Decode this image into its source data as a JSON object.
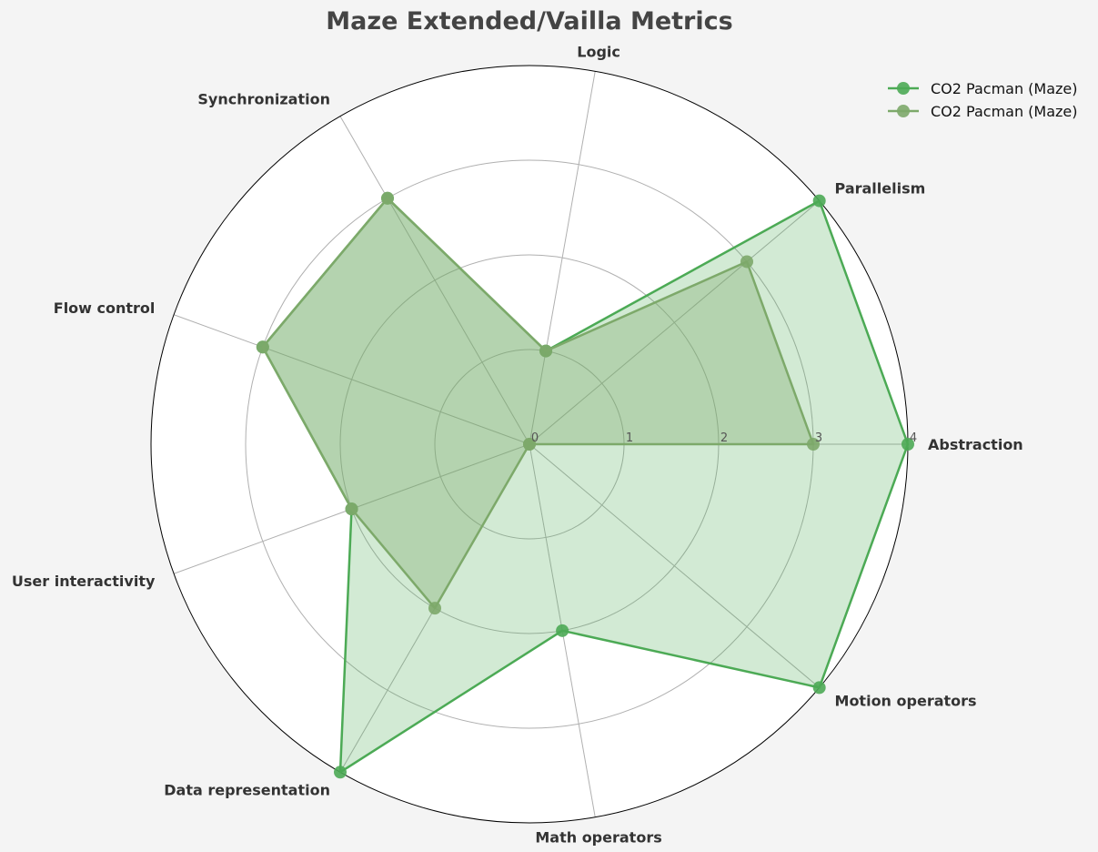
{
  "chart_data": {
    "type": "radar",
    "title": "Maze Extended/Vailla Metrics",
    "axes": [
      "Abstraction",
      "Parallelism",
      "Logic",
      "Synchronization",
      "Flow control",
      "User interactivity",
      "Data representation",
      "Math operators",
      "Motion operators"
    ],
    "rlim": [
      0,
      4
    ],
    "rticks": [
      "0",
      "1",
      "2",
      "3",
      "4"
    ],
    "grid": true,
    "legend_position": "top-right",
    "series": [
      {
        "name": "CO2 Pacman (Maze)",
        "values": [
          4,
          4,
          1,
          3,
          3,
          2,
          4,
          2,
          4
        ],
        "color": "#4caa55",
        "fill_opacity": 0.25
      },
      {
        "name": "CO2 Pacman (Maze)",
        "values": [
          3,
          3,
          1,
          3,
          3,
          2,
          2,
          0,
          0
        ],
        "color": "#7da96a",
        "fill_opacity": 0.35
      }
    ]
  }
}
